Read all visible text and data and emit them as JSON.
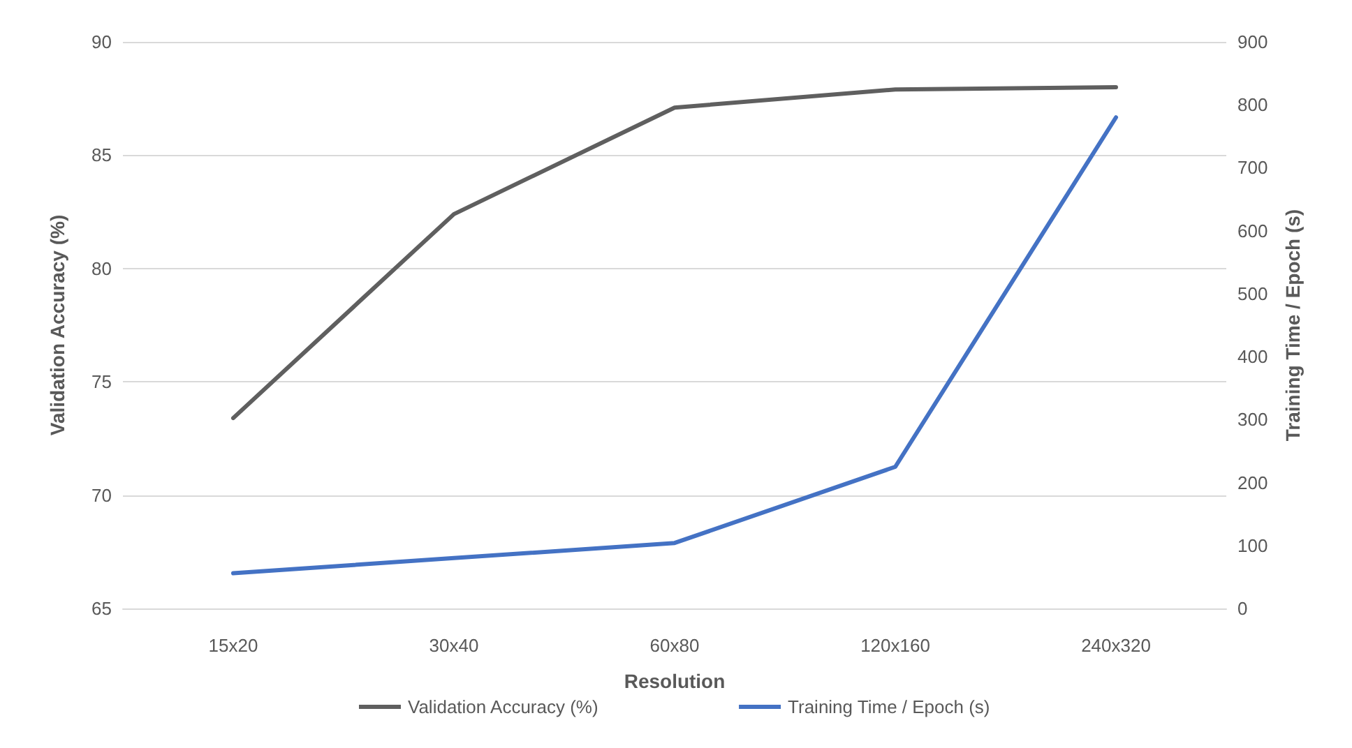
{
  "chart_data": {
    "type": "line",
    "xlabel": "Resolution",
    "ylabel": "Validation Accuracy (%)",
    "y2label": "Training Time / Epoch (s)",
    "categories": [
      "15x20",
      "30x40",
      "60x80",
      "120x160",
      "240x320"
    ],
    "series": [
      {
        "name": "Validation Accuracy (%)",
        "color": "#5f5f5f",
        "values": [
          73.4,
          82.4,
          87.1,
          87.9,
          88.0
        ]
      },
      {
        "name": "Training Time / Epoch (s)",
        "color": "#4472c4",
        "values": [
          56,
          80,
          104,
          225,
          780
        ],
        "axis": "y2"
      }
    ],
    "ylim": [
      65,
      90
    ],
    "yticks": [
      65,
      70,
      75,
      80,
      85,
      90
    ],
    "y2lim": [
      0,
      900
    ],
    "y2ticks": [
      0,
      100,
      200,
      300,
      400,
      500,
      600,
      700,
      800,
      900
    ],
    "grid": "y",
    "legend": "bottom",
    "marker": "none",
    "line_style": "solid"
  }
}
